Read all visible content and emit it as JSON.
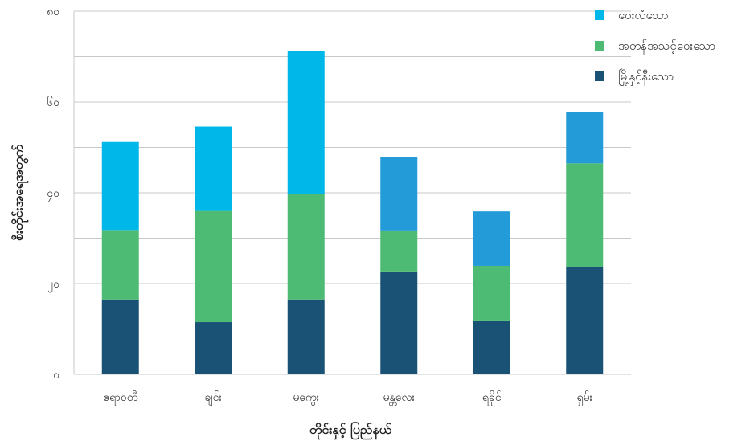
{
  "chart_data": {
    "type": "bar",
    "stacked": true,
    "categories": [
      "ဧရာဝတီ",
      "ချင်း",
      "မကွေး",
      "မန္တလေး",
      "ရခိုင်",
      "ရှမ်း"
    ],
    "series": [
      {
        "name": "မြို့နှင့်နီးသော",
        "values": [
          16.5,
          11.5,
          16.5,
          22.5,
          11.7,
          23.7
        ],
        "color": "#1a5276"
      },
      {
        "name": "အတန်အသင့်ဝေးသော",
        "values": [
          15.3,
          24.5,
          23.3,
          9.2,
          12.2,
          22.8
        ],
        "color": "#4dbb73"
      },
      {
        "name": "ဝေးလံသော",
        "values": [
          19.4,
          18.6,
          31.4,
          16.1,
          12.0,
          11.3
        ],
        "colors": [
          "#00b7ea",
          "#00b7ea",
          "#00b7ea",
          "#239bd8",
          "#239bd8",
          "#239bd8"
        ]
      }
    ],
    "xlabel": "တိုင်းနှင့် ပြည်နယ်",
    "ylabel": "စီးတိုင်းအရေအတွက်",
    "ylim": [
      0,
      80
    ],
    "yticks": [
      0,
      20,
      40,
      60,
      80
    ],
    "ytick_labels": [
      "၀",
      "၂၀",
      "၄၀",
      "၆၀",
      "၈၀"
    ],
    "grid": true,
    "legend": "top-right"
  }
}
